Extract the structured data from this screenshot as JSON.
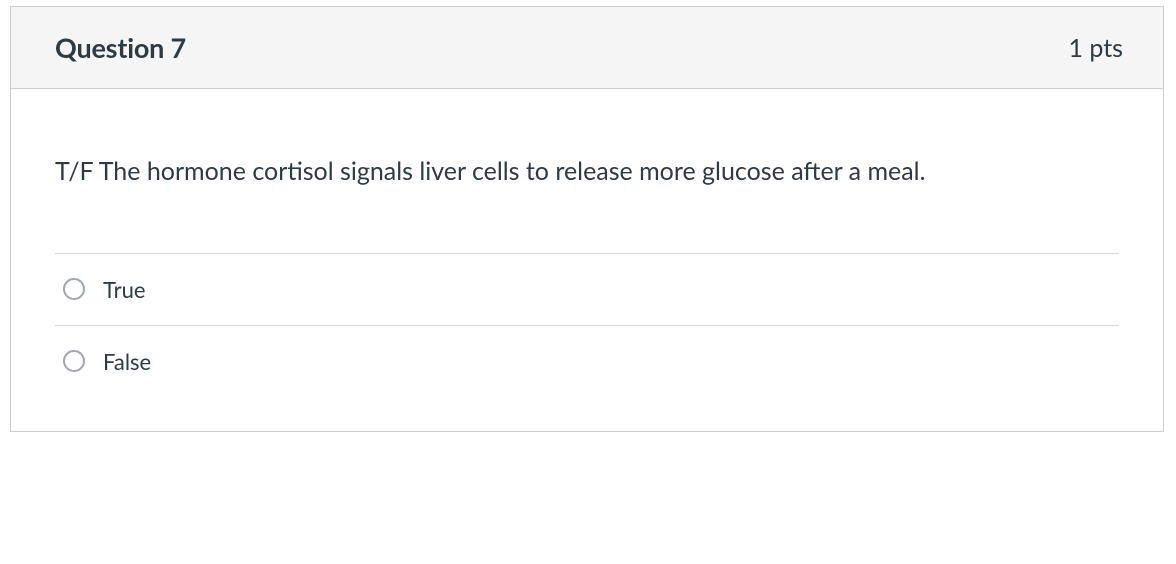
{
  "card": {
    "border_color": "#c7cdd1",
    "header_bg": "#f5f5f5",
    "body_bg": "#ffffff",
    "text_color": "#2d3b45",
    "divider_color": "#d6d9db",
    "radio_border_color": "#9fa6ab"
  },
  "question": {
    "title": "Question 7",
    "points_label": "1 pts",
    "prompt": "T/F The hormone cortisol signals liver cells to release more glucose after a meal.",
    "options": [
      {
        "label": "True",
        "selected": false
      },
      {
        "label": "False",
        "selected": false
      }
    ]
  },
  "typography": {
    "title_fontsize": 27,
    "title_fontweight": 700,
    "points_fontsize": 25,
    "prompt_fontsize": 25,
    "option_fontsize": 22
  }
}
